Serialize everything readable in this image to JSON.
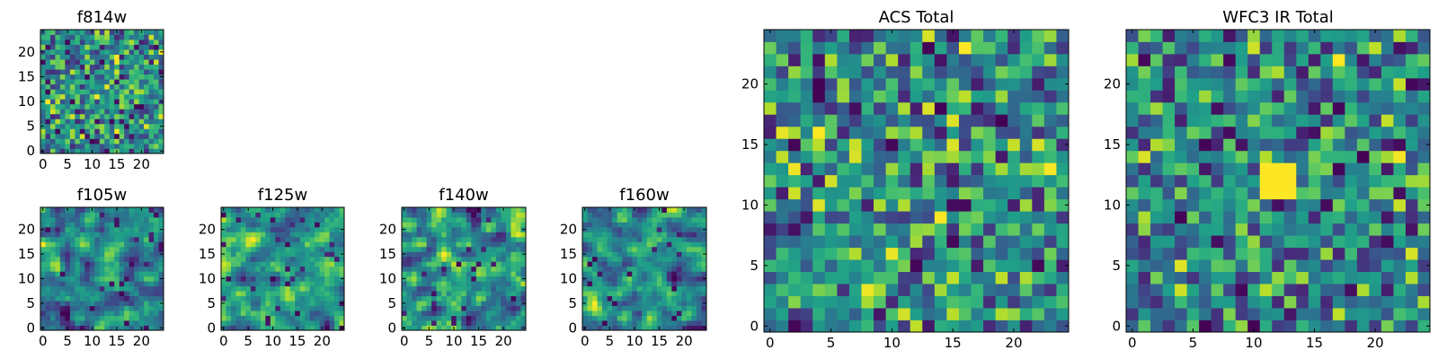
{
  "chart_data": [
    {
      "type": "heatmap",
      "title": "f814w",
      "colormap": "viridis",
      "pixels": 25,
      "seed": 11,
      "smooth": 0,
      "xticks": [
        0,
        5,
        10,
        15,
        20
      ],
      "yticks": [
        0,
        5,
        10,
        15,
        20
      ]
    },
    {
      "type": "heatmap",
      "title": "f105w",
      "colormap": "viridis",
      "pixels": 25,
      "seed": 23,
      "smooth": 1,
      "xticks": [
        0,
        5,
        10,
        15,
        20
      ],
      "yticks": [
        0,
        5,
        10,
        15,
        20
      ]
    },
    {
      "type": "heatmap",
      "title": "f125w",
      "colormap": "viridis",
      "pixels": 25,
      "seed": 37,
      "smooth": 1,
      "xticks": [
        0,
        5,
        10,
        15,
        20
      ],
      "yticks": [
        0,
        5,
        10,
        15,
        20
      ]
    },
    {
      "type": "heatmap",
      "title": "f140w",
      "colormap": "viridis",
      "pixels": 25,
      "seed": 41,
      "smooth": 1,
      "xticks": [
        0,
        5,
        10,
        15,
        20
      ],
      "yticks": [
        0,
        5,
        10,
        15,
        20
      ]
    },
    {
      "type": "heatmap",
      "title": "f160w",
      "colormap": "viridis",
      "pixels": 25,
      "seed": 53,
      "smooth": 1,
      "xticks": [
        0,
        5,
        10,
        15,
        20
      ],
      "yticks": [
        0,
        5,
        10,
        15,
        20
      ]
    },
    {
      "type": "heatmap",
      "title": "ACS Total",
      "colormap": "viridis",
      "pixels": 25,
      "seed": 67,
      "smooth": 0,
      "xticks": [
        0,
        5,
        10,
        15,
        20
      ],
      "yticks": [
        0,
        5,
        10,
        15,
        20
      ]
    },
    {
      "type": "heatmap",
      "title": "WFC3 IR Total",
      "colormap": "viridis",
      "pixels": 25,
      "seed": 79,
      "smooth": 0,
      "source": {
        "x": [
          11,
          13
        ],
        "y": [
          11,
          13
        ]
      },
      "xticks": [
        0,
        5,
        10,
        15,
        20
      ],
      "yticks": [
        0,
        5,
        10,
        15,
        20
      ]
    }
  ]
}
